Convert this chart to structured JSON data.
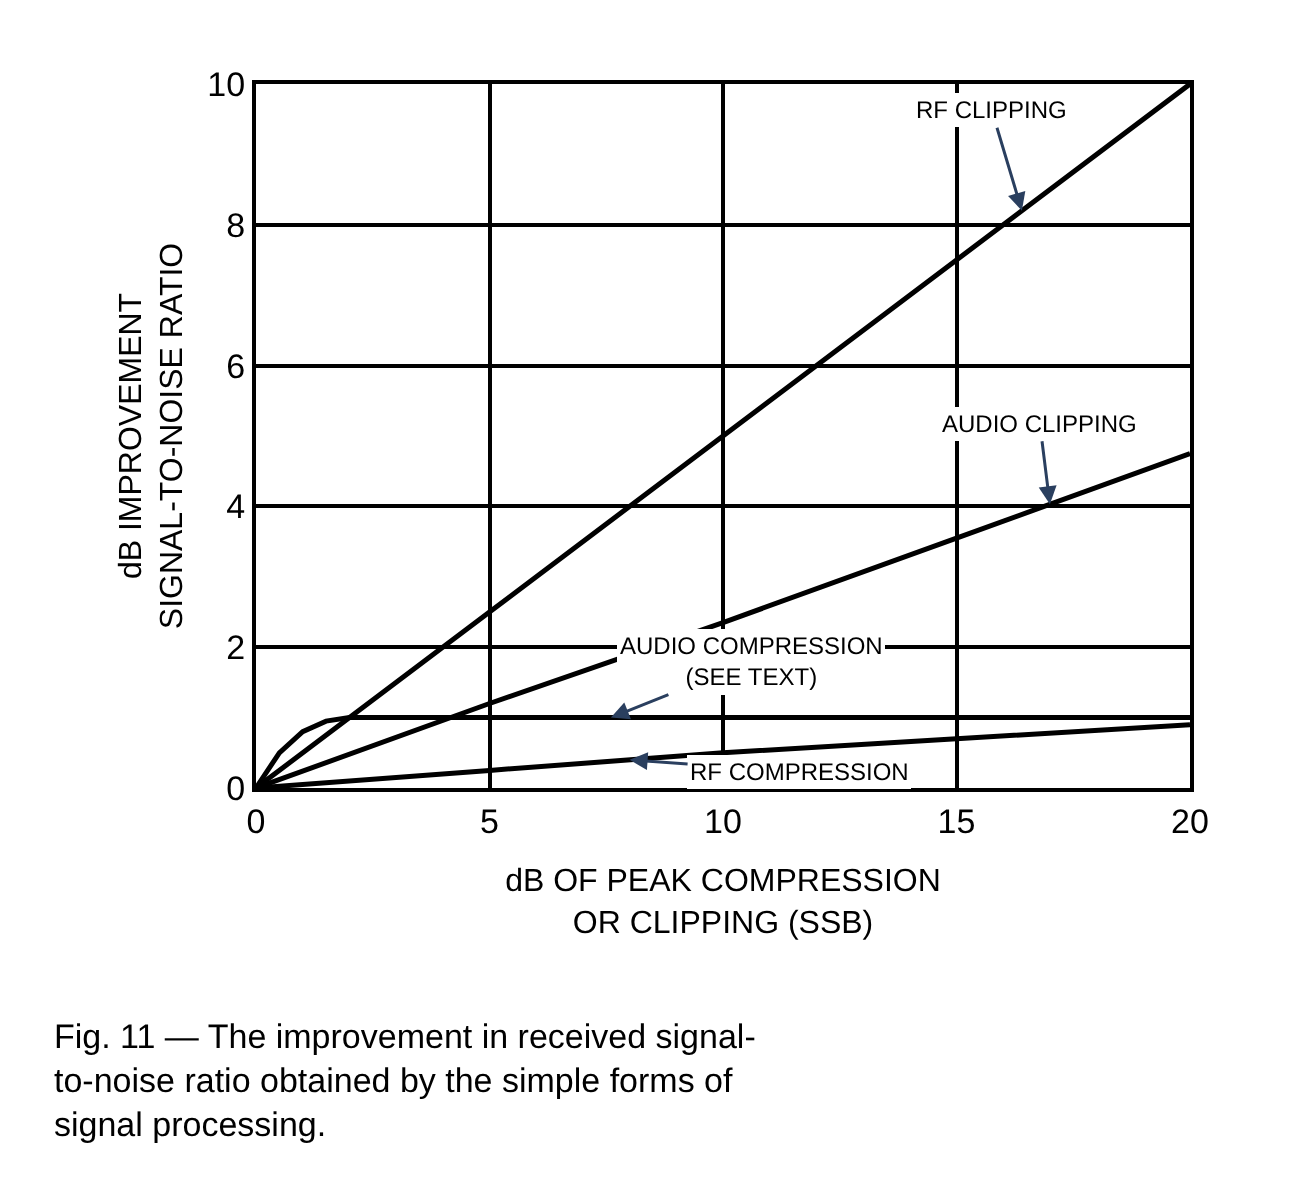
{
  "chart_data": {
    "type": "line",
    "xlabel": "dB OF PEAK COMPRESSION\nOR CLIPPING (SSB)",
    "ylabel": "dB IMPROVEMENT\nSIGNAL-TO-NOISE RATIO",
    "xlim": [
      0,
      20
    ],
    "xticks": [
      0,
      5,
      10,
      15,
      20
    ],
    "ylim": [
      0,
      10
    ],
    "yticks": [
      0,
      2,
      4,
      6,
      8,
      10
    ],
    "grid": true,
    "legend": false,
    "marker": "none",
    "line_style": "solid",
    "series": [
      {
        "name": "RF CLIPPING",
        "color": "#000000",
        "x": [
          0,
          5,
          10,
          15,
          20
        ],
        "values": [
          0,
          2.5,
          5,
          7.5,
          10
        ]
      },
      {
        "name": "AUDIO CLIPPING",
        "color": "#000000",
        "x": [
          0,
          5,
          10,
          15,
          20
        ],
        "values": [
          0,
          1.2,
          2.35,
          3.55,
          4.75
        ]
      },
      {
        "name": "AUDIO COMPRESSION\n(SEE TEXT)",
        "color": "#000000",
        "x": [
          0,
          0.5,
          1,
          1.5,
          2,
          5,
          10,
          15,
          20
        ],
        "values": [
          0,
          0.5,
          0.8,
          0.95,
          1,
          1,
          1,
          1,
          1
        ]
      },
      {
        "name": "RF COMPRESSION",
        "color": "#000000",
        "x": [
          0,
          5,
          10,
          15,
          20
        ],
        "values": [
          0,
          0.25,
          0.5,
          0.7,
          0.9
        ]
      }
    ],
    "annotations": [
      "Fig. 11 — The improvement in received signal-\nto-noise ratio obtained by the simple forms of\nsignal processing."
    ]
  }
}
